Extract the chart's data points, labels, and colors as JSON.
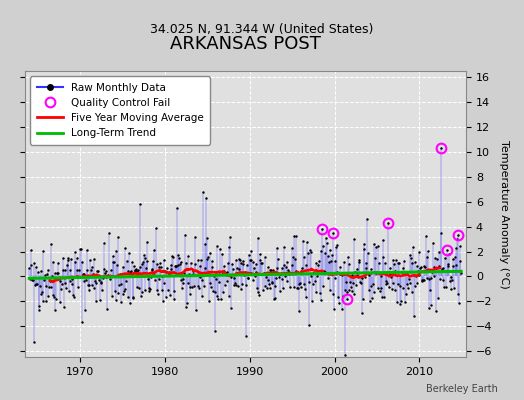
{
  "title": "ARKANSAS POST",
  "subtitle": "34.025 N, 91.344 W (United States)",
  "ylabel": "Temperature Anomaly (°C)",
  "credit": "Berkeley Earth",
  "xlim": [
    1963.5,
    2015.5
  ],
  "ylim": [
    -6.5,
    16.5
  ],
  "yticks": [
    -6,
    -4,
    -2,
    0,
    2,
    4,
    6,
    8,
    10,
    12,
    14,
    16
  ],
  "xticks": [
    1970,
    1980,
    1990,
    2000,
    2010
  ],
  "bg_color": "#d0d0d0",
  "plot_bg_color": "#e0e0e0",
  "grid_color": "#ffffff",
  "line_color": "#3333ff",
  "dot_color": "#000000",
  "ma_color": "#ff0000",
  "trend_color": "#00bb00",
  "qc_color": "#ff00ff",
  "title_fontsize": 13,
  "subtitle_fontsize": 9,
  "seed": 42,
  "start_year": 1964,
  "end_year": 2014
}
